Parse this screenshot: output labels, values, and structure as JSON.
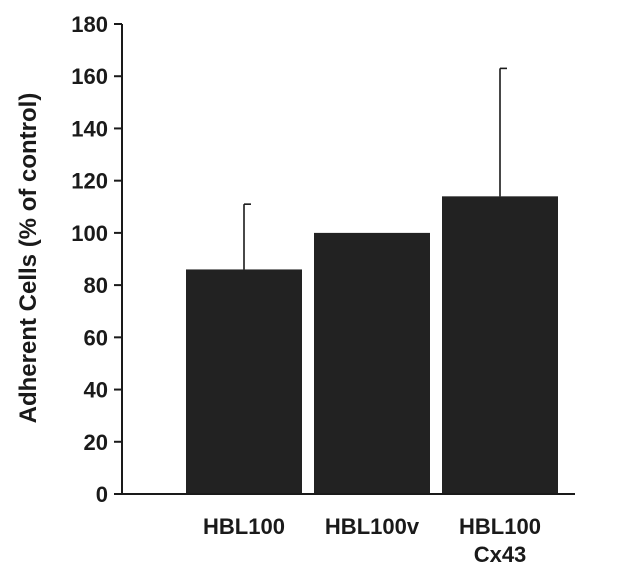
{
  "chart_data": {
    "type": "bar",
    "title": "",
    "xlabel": "",
    "ylabel": "Adherent  Cells (% of control)",
    "ylim": [
      0,
      180
    ],
    "yticks": [
      0,
      20,
      40,
      60,
      80,
      100,
      120,
      140,
      160,
      180
    ],
    "categories": [
      [
        "HBL100"
      ],
      [
        "HBL100v"
      ],
      [
        "HBL100",
        "Cx43"
      ]
    ],
    "values": [
      86,
      100,
      114
    ],
    "error_upper": [
      25,
      0,
      49
    ],
    "bar_color": "#222222",
    "grid": false,
    "legend": "none"
  }
}
